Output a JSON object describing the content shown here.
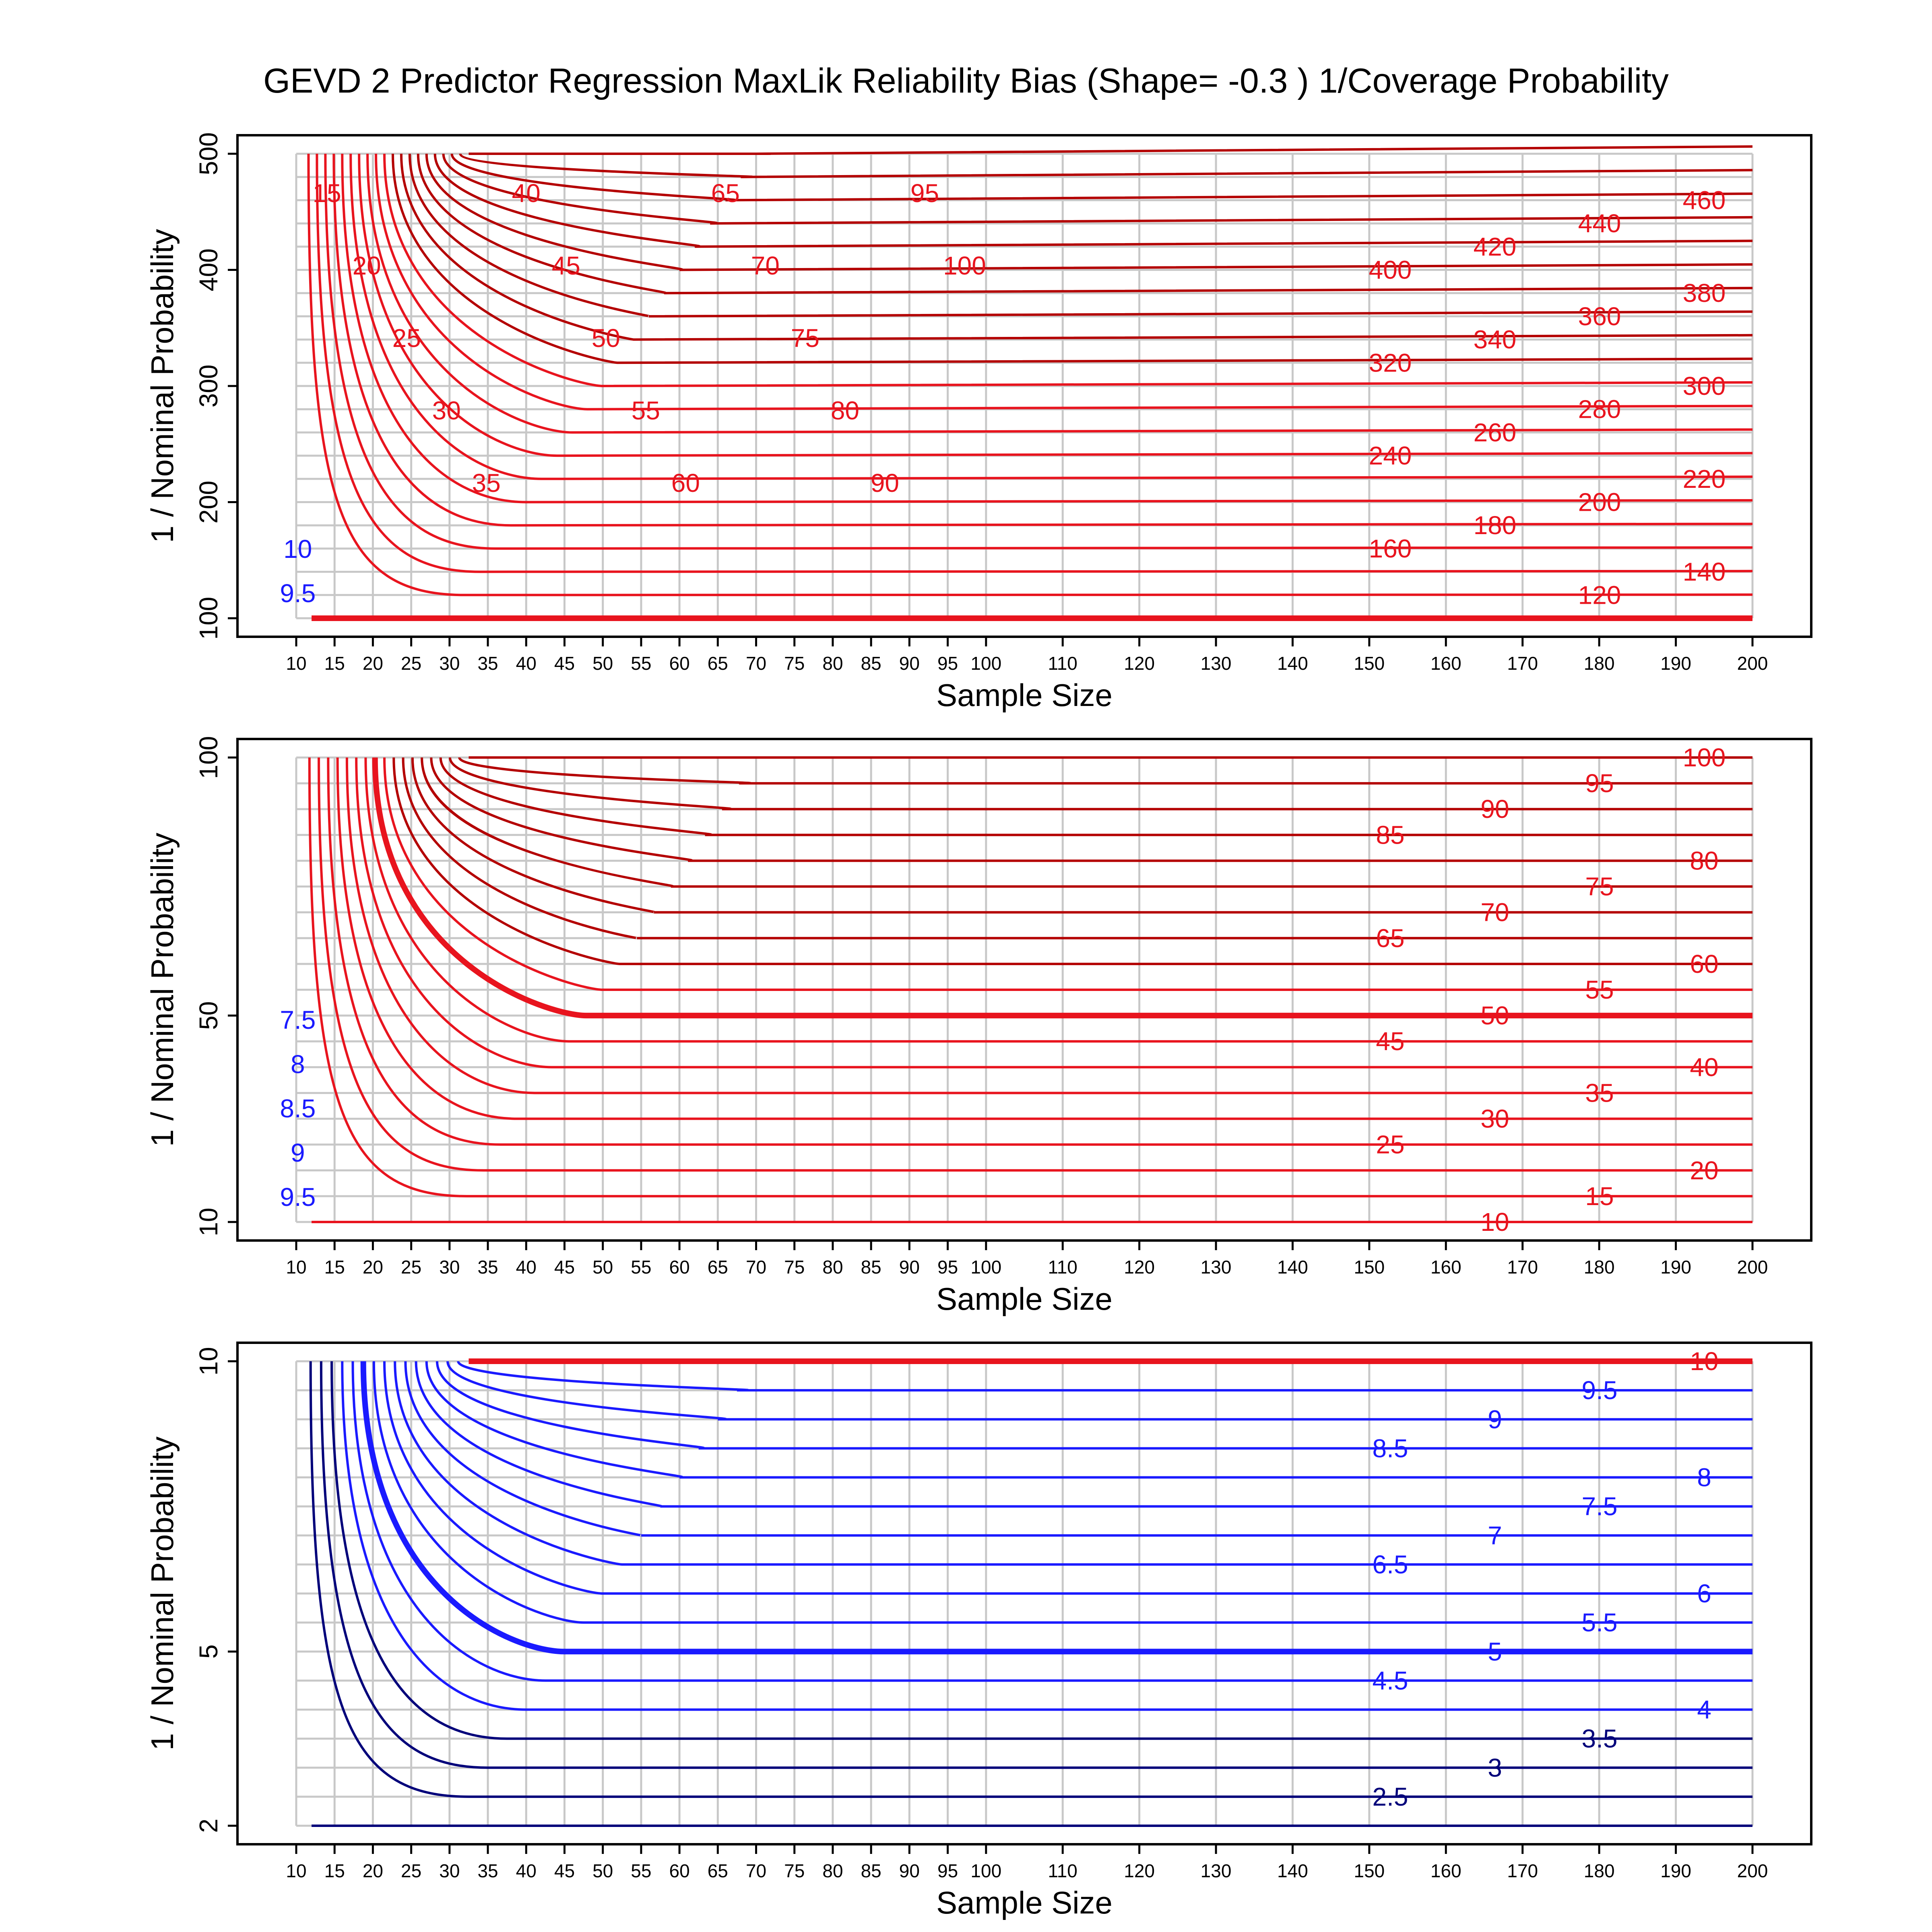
{
  "chart_data": {
    "type": "contour",
    "title": "GEVD 2 Predictor Regression MaxLik Reliability Bias (Shape= -0.3 ) 1/Coverage Probability",
    "x_ticks": [
      10,
      15,
      20,
      25,
      30,
      35,
      40,
      45,
      50,
      55,
      60,
      65,
      70,
      75,
      80,
      85,
      90,
      95,
      100,
      110,
      120,
      130,
      140,
      150,
      160,
      170,
      180,
      190,
      200
    ],
    "colors": {
      "red": "#e8141e",
      "darkred": "#b40000",
      "blue": "#1a1aff",
      "navy": "#00007a",
      "grid": "#c8c8c8"
    },
    "panels": [
      {
        "xlabel": "Sample Size",
        "ylabel": "1 / Nominal Probability",
        "ylim": [
          100,
          500
        ],
        "y_ticks": [
          100,
          200,
          300,
          400,
          500
        ],
        "grid_y": [
          100,
          120,
          140,
          160,
          180,
          200,
          220,
          240,
          260,
          280,
          300,
          320,
          340,
          360,
          380,
          400,
          420,
          440,
          460,
          480,
          500
        ],
        "contour_labels_right": [
          "460",
          "440",
          "420",
          "400",
          "380",
          "360",
          "340",
          "320",
          "300",
          "280",
          "260",
          "240",
          "220",
          "200",
          "180",
          "160",
          "140",
          "120"
        ],
        "contour_labels_left": [
          "15",
          "20",
          "25",
          "30",
          "35",
          "40",
          "45",
          "50",
          "55",
          "60",
          "65",
          "70",
          "75",
          "80",
          "90",
          "95",
          "100"
        ],
        "contour_labels_blue": [
          "9.5",
          "10"
        ]
      },
      {
        "xlabel": "Sample Size",
        "ylabel": "1 / Nominal Probability",
        "ylim": [
          10,
          100
        ],
        "y_ticks": [
          10,
          50,
          100
        ],
        "grid_y": [
          10,
          15,
          20,
          25,
          30,
          35,
          40,
          45,
          50,
          55,
          60,
          65,
          70,
          75,
          80,
          85,
          90,
          95,
          100
        ],
        "contour_labels": [
          "100",
          "95",
          "90",
          "85",
          "80",
          "75",
          "70",
          "65",
          "60",
          "55",
          "50",
          "45",
          "40",
          "35",
          "30",
          "25",
          "20",
          "15",
          "10"
        ],
        "contour_labels_blue": [
          "9.5",
          "9",
          "8.5",
          "8",
          "7.5"
        ]
      },
      {
        "xlabel": "Sample Size",
        "ylabel": "1 / Nominal Probability",
        "ylim": [
          2,
          10
        ],
        "y_ticks": [
          2,
          5,
          10
        ],
        "grid_y": [
          2,
          2.5,
          3,
          3.5,
          4,
          4.5,
          5,
          5.5,
          6,
          6.5,
          7,
          7.5,
          8,
          8.5,
          9,
          9.5,
          10
        ],
        "contour_labels": [
          "10",
          "9.5",
          "9",
          "8.5",
          "8",
          "7.5",
          "7",
          "6.5",
          "6",
          "5.5",
          "5",
          "4.5",
          "4",
          "3.5",
          "3",
          "2.5"
        ]
      }
    ]
  }
}
